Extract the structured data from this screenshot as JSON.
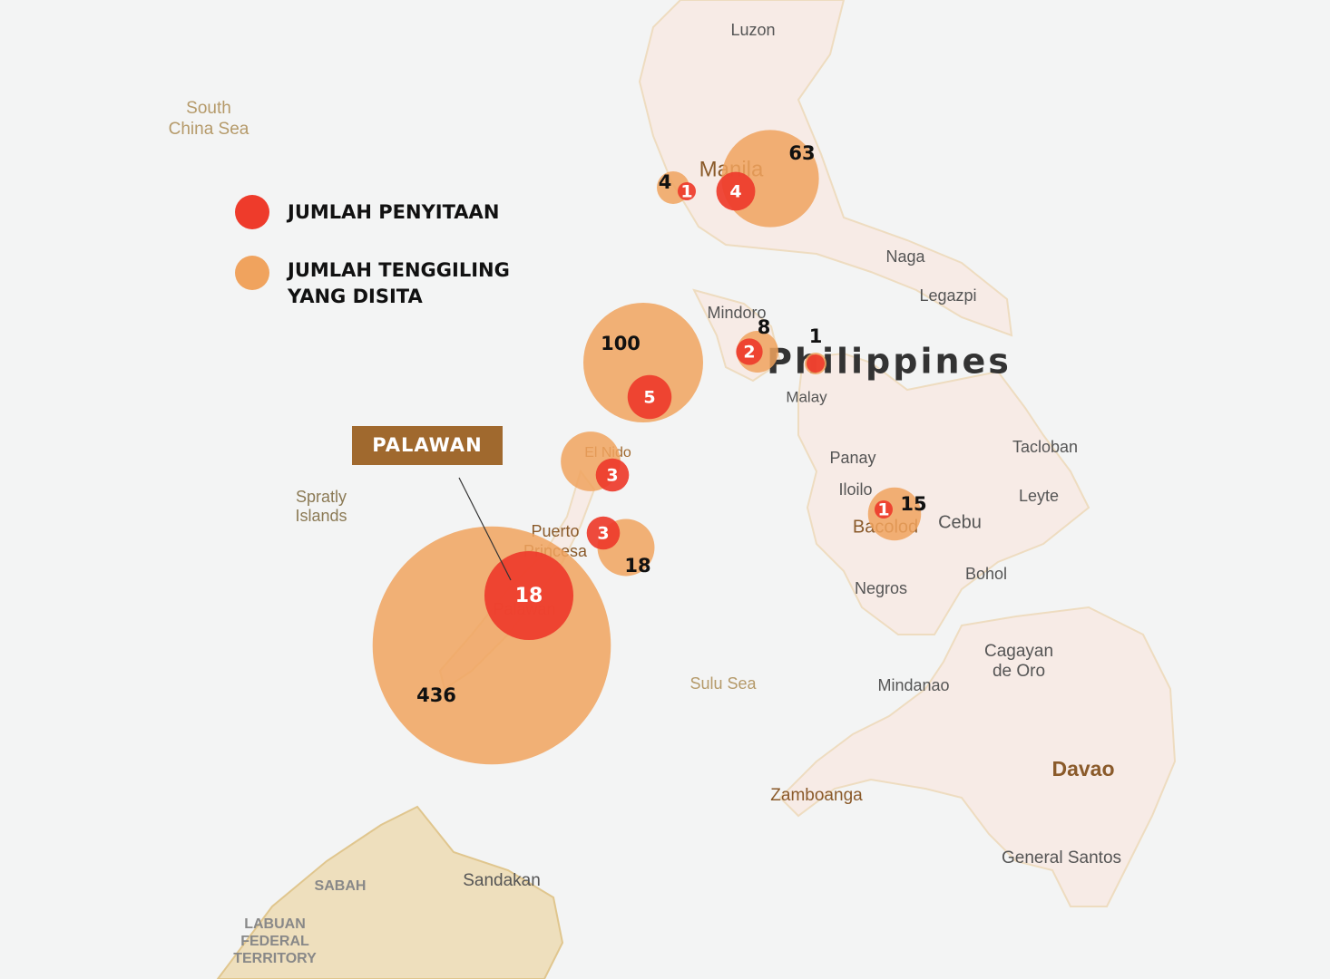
{
  "legend": {
    "seizures": "JUMLAH PENYITAAN",
    "pangolins": "JUMLAH TENGGILING YANG DISITA"
  },
  "callout": "PALAWAN",
  "bubbles": {
    "seizures": {
      "name": "JUMLAH PENYITAAN",
      "color": "#ee3b2b",
      "values": [
        1,
        4,
        2,
        1,
        5,
        3,
        3,
        18,
        1
      ],
      "value_labels": [
        "1",
        "4",
        "2",
        null,
        "5",
        "3",
        "3",
        "18",
        "1"
      ]
    },
    "pangolins": {
      "name": "JUMLAH TENGGILING YANG DISITA",
      "color": "#f0a35e",
      "values": [
        4,
        63,
        8,
        1,
        100,
        20,
        18,
        436,
        15
      ],
      "value_labels": [
        "4",
        "63",
        "8",
        "1",
        "100",
        null,
        "18",
        "436",
        "15"
      ]
    }
  },
  "map_labels": [
    [
      "Luzon"
    ],
    [
      "South",
      "China Sea"
    ],
    [
      "Manila"
    ],
    [
      "Naga"
    ],
    [
      "Legazpi"
    ],
    [
      "Mindoro"
    ],
    [
      "Philippines"
    ],
    [
      "Malay"
    ],
    [
      "Panay"
    ],
    [
      "Tacloban"
    ],
    [
      "Leyte"
    ],
    [
      "Iloilo"
    ],
    [
      "Bacolod"
    ],
    [
      "Cebu"
    ],
    [
      "Bohol"
    ],
    [
      "Negros"
    ],
    [
      "El Nido"
    ],
    [
      "Puerto",
      "Princesa"
    ],
    [
      "Spratly",
      "Islands"
    ],
    [
      "Palawan"
    ],
    [
      "Sulu Sea"
    ],
    [
      "Cagayan",
      "de Oro"
    ],
    [
      "Mindanao"
    ],
    [
      "Davao"
    ],
    [
      "Zamboanga"
    ],
    [
      "General Santos"
    ],
    [
      "Sandakan"
    ],
    [
      "SABAH"
    ],
    [
      "LABUAN",
      "FEDERAL",
      "TERRITORY"
    ]
  ]
}
